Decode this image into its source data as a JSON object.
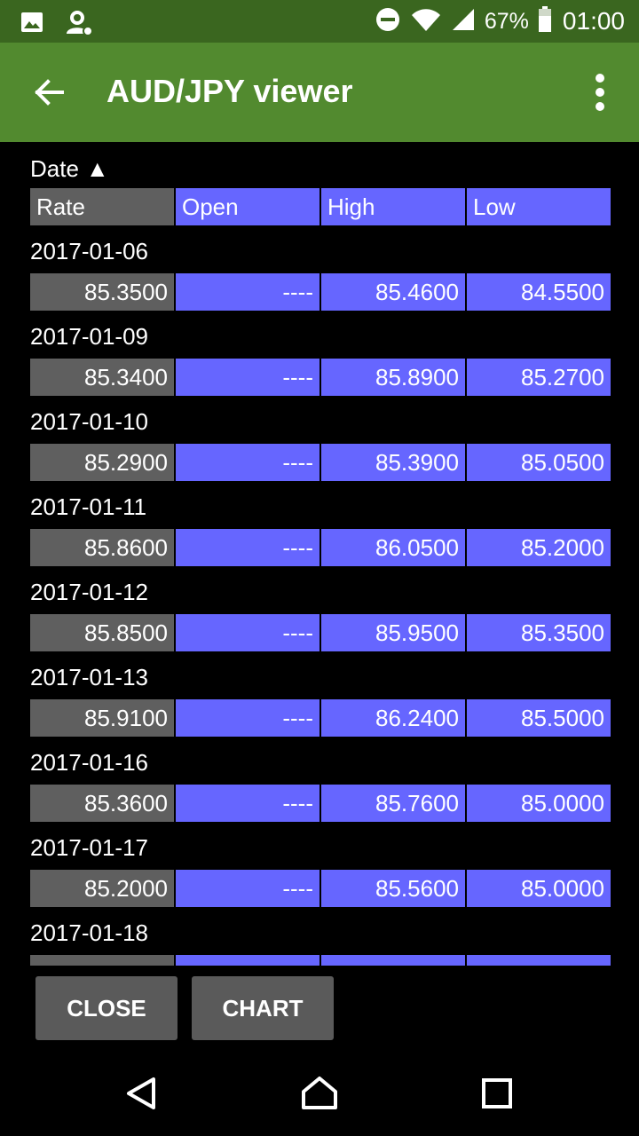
{
  "status_bar": {
    "battery": "67%",
    "time": "01:00"
  },
  "app_bar": {
    "title": "AUD/JPY viewer"
  },
  "sort": {
    "label": "Date",
    "direction_glyph": "▲"
  },
  "columns": [
    "Rate",
    "Open",
    "High",
    "Low"
  ],
  "records": [
    {
      "date": "2017-01-06",
      "rate": "85.3500",
      "open": "----",
      "high": "85.4600",
      "low": "84.5500"
    },
    {
      "date": "2017-01-09",
      "rate": "85.3400",
      "open": "----",
      "high": "85.8900",
      "low": "85.2700"
    },
    {
      "date": "2017-01-10",
      "rate": "85.2900",
      "open": "----",
      "high": "85.3900",
      "low": "85.0500"
    },
    {
      "date": "2017-01-11",
      "rate": "85.8600",
      "open": "----",
      "high": "86.0500",
      "low": "85.2000"
    },
    {
      "date": "2017-01-12",
      "rate": "85.8500",
      "open": "----",
      "high": "85.9500",
      "low": "85.3500"
    },
    {
      "date": "2017-01-13",
      "rate": "85.9100",
      "open": "----",
      "high": "86.2400",
      "low": "85.5000"
    },
    {
      "date": "2017-01-16",
      "rate": "85.3600",
      "open": "----",
      "high": "85.7600",
      "low": "85.0000"
    },
    {
      "date": "2017-01-17",
      "rate": "85.2000",
      "open": "----",
      "high": "85.5600",
      "low": "85.0000"
    },
    {
      "date": "2017-01-18",
      "rate": "",
      "open": "",
      "high": "",
      "low": ""
    }
  ],
  "buttons": {
    "close": "CLOSE",
    "chart": "CHART"
  },
  "colors": {
    "status_bar": "#3a661f",
    "app_bar": "#528a2f",
    "rate_cell": "#5f5f5f",
    "value_cell": "#6666ff"
  }
}
